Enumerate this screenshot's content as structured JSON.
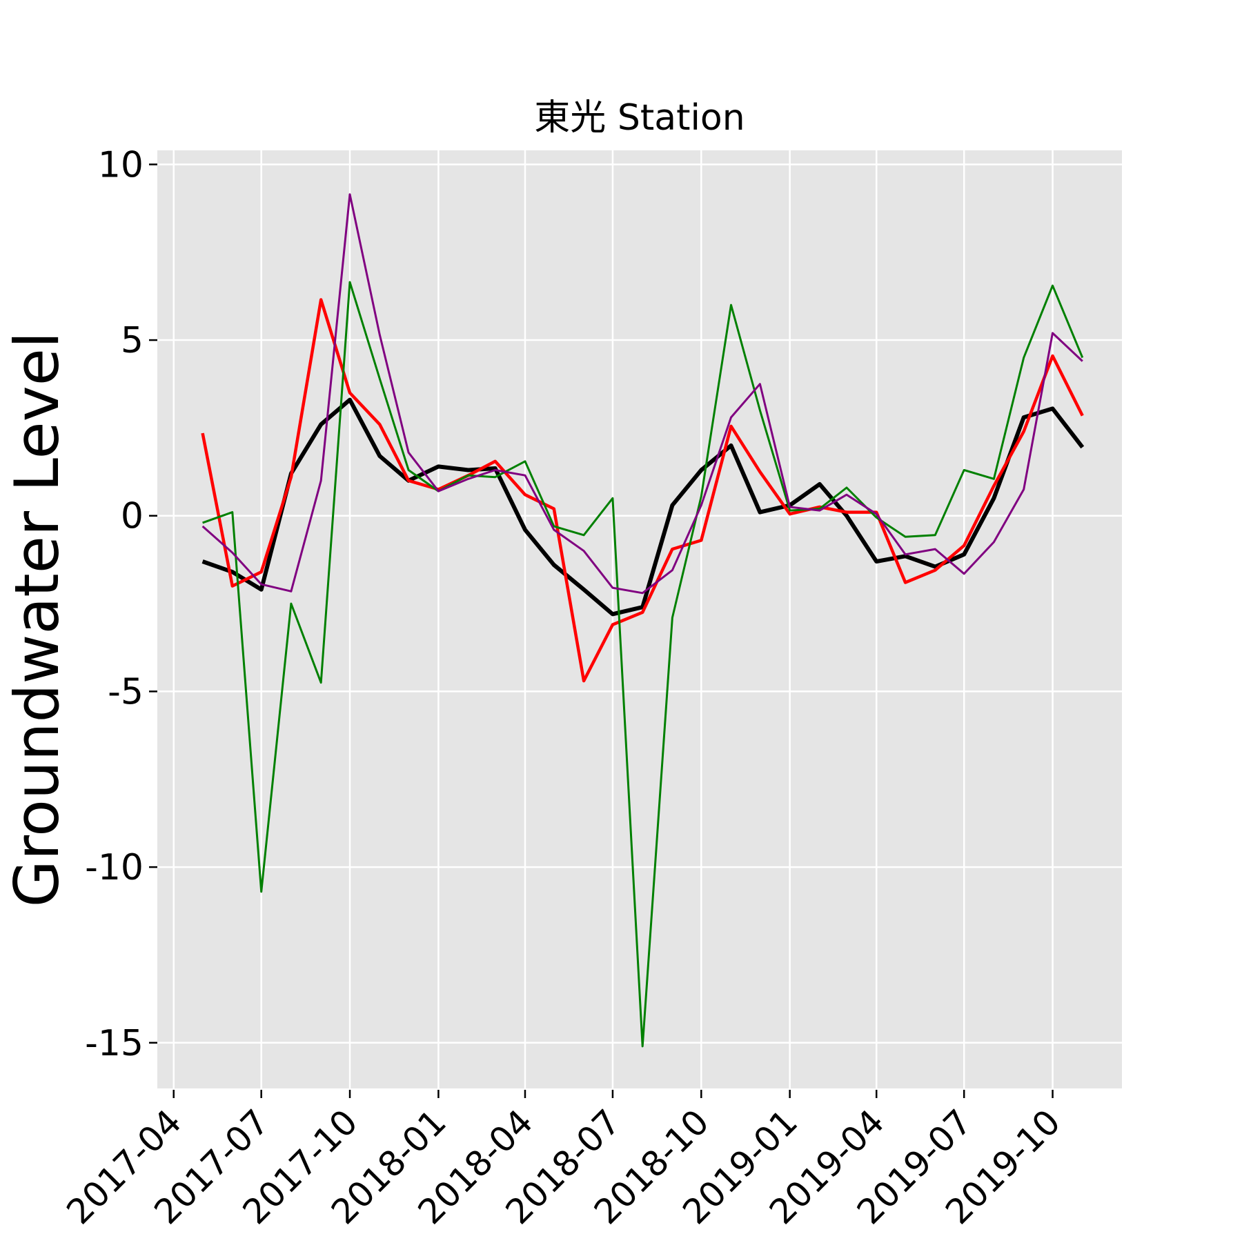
{
  "chart_data": {
    "type": "line",
    "title": "東光 Station",
    "xlabel": "",
    "ylabel": "Groundwater Level",
    "x": [
      "2017-05-01",
      "2017-06-01",
      "2017-07-01",
      "2017-08-01",
      "2017-09-01",
      "2017-10-01",
      "2017-11-01",
      "2017-12-01",
      "2018-01-01",
      "2018-02-01",
      "2018-03-01",
      "2018-04-01",
      "2018-05-01",
      "2018-06-01",
      "2018-07-01",
      "2018-08-01",
      "2018-09-01",
      "2018-10-01",
      "2018-11-01",
      "2018-12-01",
      "2019-01-01",
      "2019-02-01",
      "2019-03-01",
      "2019-04-01",
      "2019-05-01",
      "2019-06-01",
      "2019-07-01",
      "2019-08-01",
      "2019-09-01",
      "2019-10-01",
      "2019-11-01"
    ],
    "xticks": [
      "2017-04",
      "2017-07",
      "2017-10",
      "2018-01",
      "2018-04",
      "2018-07",
      "2018-10",
      "2019-01",
      "2019-04",
      "2019-07",
      "2019-10"
    ],
    "yticks": [
      10,
      5,
      0,
      -5,
      -10,
      -15
    ],
    "xlim": [
      "2017-03-15",
      "2019-12-12"
    ],
    "ylim": [
      -16.3,
      10.4
    ],
    "grid": true,
    "colors": {
      "background": "#e5e5e5",
      "grid": "#ffffff"
    },
    "series": [
      {
        "color": "#000000",
        "width": 6,
        "values": [
          -1.3,
          -1.6,
          -2.1,
          1.2,
          2.6,
          3.3,
          1.7,
          1.0,
          1.4,
          1.3,
          1.35,
          -0.4,
          -1.4,
          -2.1,
          -2.8,
          -2.6,
          0.3,
          1.3,
          2.0,
          0.1,
          0.3,
          0.9,
          0.0,
          -1.3,
          -1.15,
          -1.45,
          -1.1,
          0.5,
          2.8,
          3.05,
          1.95
        ]
      },
      {
        "color": "#ff0000",
        "width": 4.5,
        "values": [
          2.35,
          -2.0,
          -1.6,
          1.1,
          6.15,
          3.5,
          2.6,
          1.0,
          0.75,
          1.15,
          1.55,
          0.6,
          0.2,
          -4.7,
          -3.1,
          -2.75,
          -0.95,
          -0.7,
          2.55,
          1.25,
          0.05,
          0.25,
          0.1,
          0.1,
          -1.9,
          -1.55,
          -0.85,
          0.85,
          2.4,
          4.55,
          2.85
        ]
      },
      {
        "color": "#008000",
        "width": 3,
        "values": [
          -0.2,
          0.1,
          -10.7,
          -2.5,
          -4.75,
          6.65,
          3.9,
          1.3,
          0.7,
          1.15,
          1.1,
          1.55,
          -0.3,
          -0.55,
          0.5,
          -15.1,
          -2.9,
          0.55,
          6.0,
          3.0,
          0.15,
          0.2,
          0.8,
          -0.05,
          -0.6,
          -0.55,
          1.3,
          1.05,
          4.5,
          6.55,
          4.5
        ]
      },
      {
        "color": "#800080",
        "width": 3,
        "values": [
          -0.3,
          -1.05,
          -1.95,
          -2.15,
          1.0,
          9.15,
          5.15,
          1.8,
          0.7,
          1.05,
          1.3,
          1.15,
          -0.4,
          -1.0,
          -2.05,
          -2.2,
          -1.55,
          0.3,
          2.8,
          3.75,
          0.25,
          0.15,
          0.6,
          0.05,
          -1.1,
          -0.95,
          -1.65,
          -0.75,
          0.75,
          5.2,
          4.4
        ]
      }
    ]
  }
}
